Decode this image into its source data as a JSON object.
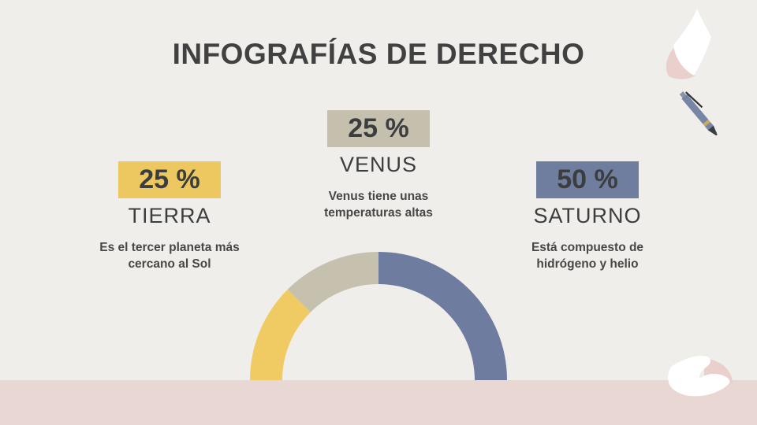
{
  "slide": {
    "title": "INFOGRAFÍAS DE DERECHO",
    "colors": {
      "background": "#f0eeeb",
      "bottom_band": "#e9d7d4",
      "text": "#414141",
      "accent_yellow": "#edc75f",
      "accent_beige": "#c5bfad",
      "accent_blue": "#6f7d9e",
      "paper_shadow_pink": "#e9d0cc"
    }
  },
  "stats": [
    {
      "percent": "25 %",
      "name": "TIERRA",
      "description": "Es el tercer planeta más cercano al Sol",
      "badge_color": "#edc75f"
    },
    {
      "percent": "25 %",
      "name": "VENUS",
      "description": "Venus tiene unas temperaturas altas",
      "badge_color": "#c5bfad"
    },
    {
      "percent": "50 %",
      "name": "SATURNO",
      "description": "Está compuesto de hidrógeno y helio",
      "badge_color": "#6f7d9e"
    }
  ],
  "chart_data": {
    "type": "pie",
    "subtype": "semicircle-donut-gauge",
    "title": "INFOGRAFÍAS DE DERECHO",
    "series": [
      {
        "name": "TIERRA",
        "value": 25,
        "color": "#f0ca62"
      },
      {
        "name": "VENUS",
        "value": 25,
        "color": "#c6c0ae"
      },
      {
        "name": "SATURNO",
        "value": 50,
        "color": "#6e7ca0"
      }
    ],
    "total": 100,
    "start_angle_deg": 180,
    "end_angle_deg": 0,
    "outer_radius": 163,
    "inner_radius": 122,
    "legend": "none",
    "labels": "shown-as-stat-blocks"
  },
  "decorations": {
    "top_right": "paper-sheet",
    "middle_right": "ballpoint-pen",
    "bottom_right": "paper-sheet"
  }
}
